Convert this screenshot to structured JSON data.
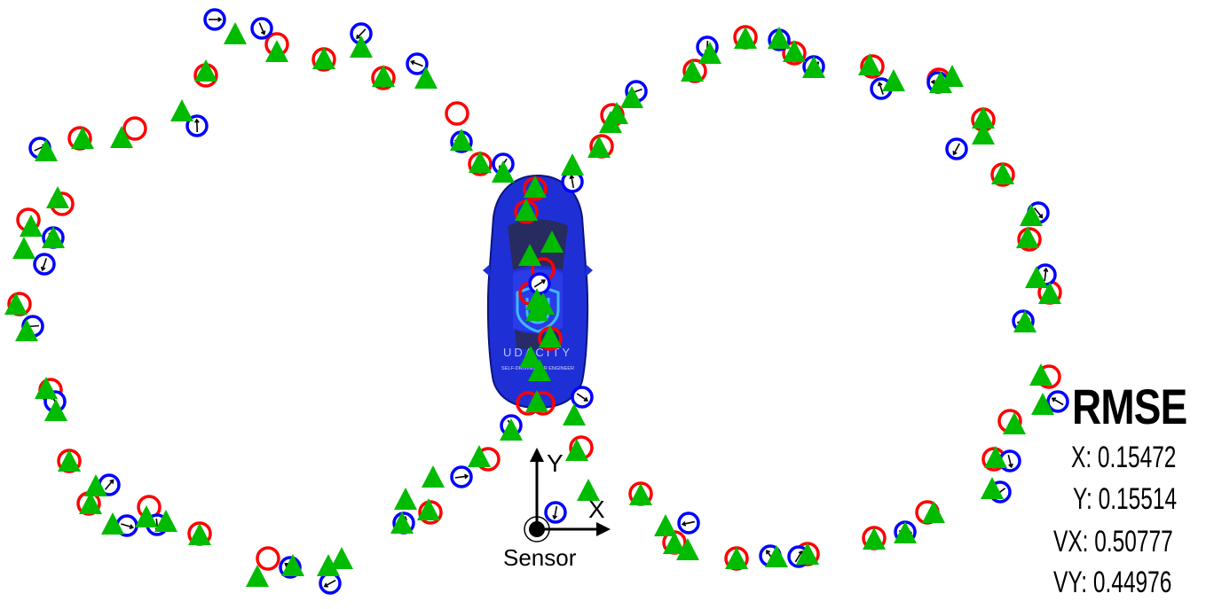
{
  "rmse": {
    "title": "RMSE",
    "rows": [
      {
        "label": "X: ",
        "value": "0.15472"
      },
      {
        "label": "Y: ",
        "value": "0.15514"
      },
      {
        "label": "VX: ",
        "value": "0.50777"
      },
      {
        "label": "VY: ",
        "value": "0.44976"
      }
    ]
  },
  "sensor": {
    "label": "Sensor",
    "x_axis": "X",
    "y_axis": "Y"
  },
  "car": {
    "brand": "UDACITY",
    "tagline": "SELF-DRIVING CAR ENGINEER",
    "body_color": "#1f2fd6"
  },
  "markers": {
    "lidar_color": "#ff0000",
    "radar_color": "#0000ff",
    "estimate_color": "#00bb00",
    "lidar": [
      [
        152,
        145
      ],
      [
        90,
        156
      ],
      [
        70,
        230
      ],
      [
        32,
        248
      ],
      [
        22,
        343
      ],
      [
        57,
        440
      ],
      [
        78,
        520
      ],
      [
        100,
        568
      ],
      [
        168,
        572
      ],
      [
        225,
        602
      ],
      [
        302,
        630
      ],
      [
        365,
        67
      ],
      [
        432,
        88
      ],
      [
        312,
        50
      ],
      [
        232,
        85
      ],
      [
        515,
        128
      ],
      [
        541,
        185
      ],
      [
        603,
        213
      ],
      [
        593,
        239
      ],
      [
        612,
        304
      ],
      [
        598,
        331
      ],
      [
        620,
        382
      ],
      [
        595,
        455
      ],
      [
        612,
        455
      ],
      [
        655,
        505
      ],
      [
        550,
        518
      ],
      [
        485,
        578
      ],
      [
        722,
        557
      ],
      [
        760,
        612
      ],
      [
        830,
        630
      ],
      [
        910,
        625
      ],
      [
        985,
        607
      ],
      [
        1045,
        578
      ],
      [
        1120,
        518
      ],
      [
        1138,
        475
      ],
      [
        1182,
        425
      ],
      [
        1183,
        330
      ],
      [
        1160,
        270
      ],
      [
        1130,
        197
      ],
      [
        1108,
        135
      ],
      [
        1058,
        90
      ],
      [
        983,
        75
      ],
      [
        895,
        60
      ],
      [
        840,
        42
      ],
      [
        783,
        80
      ],
      [
        690,
        130
      ],
      [
        678,
        165
      ]
    ],
    "radar": [
      [
        242,
        22
      ],
      [
        295,
        32
      ],
      [
        407,
        38
      ],
      [
        470,
        72
      ],
      [
        222,
        142
      ],
      [
        45,
        167
      ],
      [
        60,
        268
      ],
      [
        50,
        298
      ],
      [
        37,
        368
      ],
      [
        62,
        453
      ],
      [
        123,
        547
      ],
      [
        143,
        593
      ],
      [
        177,
        592
      ],
      [
        372,
        658
      ],
      [
        327,
        640
      ],
      [
        455,
        590
      ],
      [
        520,
        538
      ],
      [
        576,
        480
      ],
      [
        567,
        185
      ],
      [
        520,
        160
      ],
      [
        645,
        205
      ],
      [
        608,
        320
      ],
      [
        656,
        448
      ],
      [
        626,
        578
      ],
      [
        776,
        590
      ],
      [
        868,
        627
      ],
      [
        900,
        628
      ],
      [
        1020,
        600
      ],
      [
        1138,
        520
      ],
      [
        1127,
        555
      ],
      [
        1192,
        453
      ],
      [
        1178,
        310
      ],
      [
        1153,
        362
      ],
      [
        1170,
        240
      ],
      [
        1078,
        168
      ],
      [
        1057,
        93
      ],
      [
        993,
        100
      ],
      [
        917,
        75
      ],
      [
        878,
        45
      ],
      [
        797,
        53
      ],
      [
        717,
        103
      ]
    ],
    "estimate": [
      [
        265,
        40
      ],
      [
        312,
        60
      ],
      [
        365,
        68
      ],
      [
        407,
        55
      ],
      [
        432,
        88
      ],
      [
        480,
        90
      ],
      [
        232,
        82
      ],
      [
        205,
        127
      ],
      [
        137,
        157
      ],
      [
        93,
        158
      ],
      [
        52,
        172
      ],
      [
        65,
        225
      ],
      [
        35,
        257
      ],
      [
        60,
        270
      ],
      [
        27,
        282
      ],
      [
        18,
        345
      ],
      [
        30,
        375
      ],
      [
        52,
        440
      ],
      [
        63,
        465
      ],
      [
        78,
        522
      ],
      [
        108,
        550
      ],
      [
        102,
        570
      ],
      [
        127,
        593
      ],
      [
        165,
        585
      ],
      [
        187,
        590
      ],
      [
        225,
        605
      ],
      [
        290,
        652
      ],
      [
        330,
        640
      ],
      [
        370,
        640
      ],
      [
        385,
        632
      ],
      [
        453,
        592
      ],
      [
        457,
        565
      ],
      [
        488,
        540
      ],
      [
        483,
        577
      ],
      [
        540,
        517
      ],
      [
        576,
        487
      ],
      [
        520,
        160
      ],
      [
        541,
        185
      ],
      [
        567,
        196
      ],
      [
        645,
        188
      ],
      [
        603,
        213
      ],
      [
        593,
        239
      ],
      [
        622,
        275
      ],
      [
        597,
        290
      ],
      [
        605,
        340
      ],
      [
        612,
        345
      ],
      [
        605,
        352
      ],
      [
        620,
        382
      ],
      [
        598,
        405
      ],
      [
        608,
        420
      ],
      [
        605,
        455
      ],
      [
        647,
        470
      ],
      [
        650,
        510
      ],
      [
        663,
        555
      ],
      [
        722,
        560
      ],
      [
        750,
        595
      ],
      [
        760,
        615
      ],
      [
        775,
        622
      ],
      [
        830,
        632
      ],
      [
        875,
        630
      ],
      [
        910,
        627
      ],
      [
        985,
        610
      ],
      [
        1020,
        603
      ],
      [
        1052,
        580
      ],
      [
        1118,
        553
      ],
      [
        1122,
        518
      ],
      [
        1143,
        480
      ],
      [
        1175,
        458
      ],
      [
        1173,
        425
      ],
      [
        1183,
        333
      ],
      [
        1168,
        315
      ],
      [
        1155,
        365
      ],
      [
        1158,
        270
      ],
      [
        1162,
        245
      ],
      [
        1130,
        198
      ],
      [
        1108,
        153
      ],
      [
        1108,
        135
      ],
      [
        1073,
        88
      ],
      [
        1060,
        95
      ],
      [
        1007,
        93
      ],
      [
        980,
        75
      ],
      [
        917,
        78
      ],
      [
        895,
        60
      ],
      [
        878,
        45
      ],
      [
        840,
        45
      ],
      [
        800,
        62
      ],
      [
        780,
        82
      ],
      [
        712,
        112
      ],
      [
        695,
        130
      ],
      [
        688,
        140
      ],
      [
        675,
        168
      ]
    ]
  }
}
